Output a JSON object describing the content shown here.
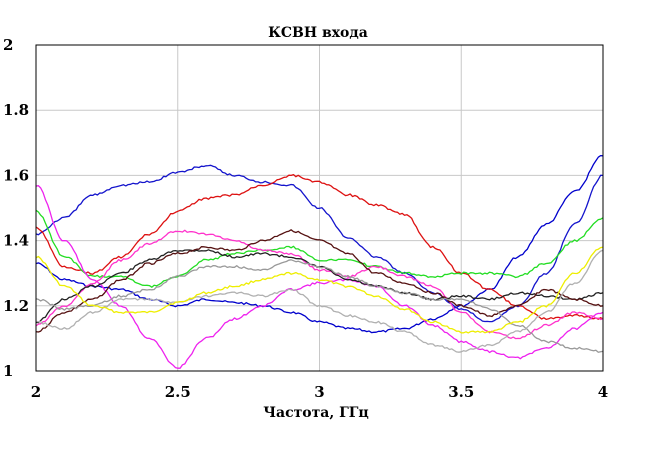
{
  "chart_data": {
    "type": "line",
    "title": "КСВН входа",
    "xlabel": "Частота, ГГц",
    "ylabel": "",
    "xlim": [
      2,
      4
    ],
    "ylim": [
      1,
      2
    ],
    "xticks": [
      {
        "value": 2,
        "label": "2"
      },
      {
        "value": 2.5,
        "label": "2.5"
      },
      {
        "value": 3,
        "label": "3"
      },
      {
        "value": 3.5,
        "label": "3.5"
      },
      {
        "value": 4,
        "label": "4"
      }
    ],
    "yticks": [
      {
        "value": 1,
        "label": "1"
      },
      {
        "value": 1.2,
        "label": "1.2"
      },
      {
        "value": 1.4,
        "label": "1.4"
      },
      {
        "value": 1.6,
        "label": "1.6"
      },
      {
        "value": 1.8,
        "label": "1.8"
      },
      {
        "value": 2,
        "label": "2"
      }
    ],
    "grid": true,
    "series": [
      {
        "color": "#0000cc",
        "x": [
          2,
          2.1,
          2.2,
          2.3,
          2.4,
          2.5,
          2.6,
          2.7,
          2.8,
          2.9,
          3.0,
          3.1,
          3.2,
          3.3,
          3.4,
          3.5,
          3.6,
          3.7,
          3.8,
          3.9,
          4.0
        ],
        "y": [
          1.33,
          1.28,
          1.26,
          1.25,
          1.22,
          1.2,
          1.22,
          1.21,
          1.2,
          1.18,
          1.15,
          1.13,
          1.12,
          1.13,
          1.16,
          1.2,
          1.25,
          1.35,
          1.45,
          1.55,
          1.66
        ]
      },
      {
        "color": "#1414cc",
        "x": [
          2,
          2.1,
          2.2,
          2.3,
          2.4,
          2.5,
          2.6,
          2.7,
          2.8,
          2.9,
          3.0,
          3.1,
          3.2,
          3.3,
          3.4,
          3.5,
          3.6,
          3.7,
          3.8,
          3.9,
          4.0
        ],
        "y": [
          1.42,
          1.47,
          1.54,
          1.57,
          1.58,
          1.61,
          1.63,
          1.6,
          1.58,
          1.57,
          1.5,
          1.41,
          1.35,
          1.3,
          1.24,
          1.19,
          1.15,
          1.2,
          1.3,
          1.45,
          1.6
        ]
      },
      {
        "color": "#dd1111",
        "x": [
          2,
          2.1,
          2.2,
          2.3,
          2.4,
          2.5,
          2.6,
          2.7,
          2.8,
          2.9,
          3.0,
          3.1,
          3.2,
          3.3,
          3.4,
          3.5,
          3.6,
          3.7,
          3.8,
          3.9,
          4.0
        ],
        "y": [
          1.44,
          1.32,
          1.3,
          1.35,
          1.42,
          1.49,
          1.53,
          1.54,
          1.57,
          1.6,
          1.58,
          1.54,
          1.51,
          1.48,
          1.38,
          1.3,
          1.25,
          1.2,
          1.16,
          1.17,
          1.16
        ]
      },
      {
        "color": "#22dd22",
        "x": [
          2,
          2.1,
          2.2,
          2.3,
          2.4,
          2.5,
          2.6,
          2.7,
          2.8,
          2.9,
          3.0,
          3.1,
          3.2,
          3.3,
          3.4,
          3.5,
          3.6,
          3.7,
          3.8,
          3.9,
          4.0
        ],
        "y": [
          1.49,
          1.35,
          1.29,
          1.29,
          1.26,
          1.29,
          1.34,
          1.36,
          1.37,
          1.38,
          1.34,
          1.34,
          1.32,
          1.3,
          1.29,
          1.3,
          1.3,
          1.29,
          1.33,
          1.4,
          1.47
        ]
      },
      {
        "color": "#ee22ee",
        "x": [
          2,
          2.1,
          2.2,
          2.3,
          2.4,
          2.5,
          2.6,
          2.7,
          2.8,
          2.9,
          3.0,
          3.1,
          3.2,
          3.3,
          3.4,
          3.5,
          3.6,
          3.7,
          3.8,
          3.9,
          4.0
        ],
        "y": [
          1.57,
          1.4,
          1.28,
          1.2,
          1.1,
          1.01,
          1.1,
          1.16,
          1.2,
          1.25,
          1.27,
          1.28,
          1.26,
          1.2,
          1.14,
          1.09,
          1.06,
          1.04,
          1.07,
          1.13,
          1.18
        ]
      },
      {
        "color": "#ff33cc",
        "x": [
          2,
          2.1,
          2.2,
          2.3,
          2.4,
          2.5,
          2.6,
          2.7,
          2.8,
          2.9,
          3.0,
          3.1,
          3.2,
          3.3,
          3.4,
          3.5,
          3.6,
          3.7,
          3.8,
          3.9,
          4.0
        ],
        "y": [
          1.14,
          1.2,
          1.27,
          1.34,
          1.39,
          1.43,
          1.42,
          1.4,
          1.37,
          1.36,
          1.31,
          1.29,
          1.32,
          1.29,
          1.26,
          1.18,
          1.12,
          1.1,
          1.14,
          1.18,
          1.16
        ]
      },
      {
        "color": "#222222",
        "x": [
          2,
          2.1,
          2.2,
          2.3,
          2.4,
          2.5,
          2.6,
          2.7,
          2.8,
          2.9,
          3.0,
          3.1,
          3.2,
          3.3,
          3.4,
          3.5,
          3.6,
          3.7,
          3.8,
          3.9,
          4.0
        ],
        "y": [
          1.15,
          1.22,
          1.26,
          1.3,
          1.34,
          1.37,
          1.37,
          1.35,
          1.36,
          1.35,
          1.32,
          1.28,
          1.26,
          1.24,
          1.22,
          1.23,
          1.22,
          1.24,
          1.23,
          1.22,
          1.24
        ]
      },
      {
        "color": "#551111",
        "x": [
          2,
          2.1,
          2.2,
          2.3,
          2.4,
          2.5,
          2.6,
          2.7,
          2.8,
          2.9,
          3.0,
          3.1,
          3.2,
          3.3,
          3.4,
          3.5,
          3.6,
          3.7,
          3.8,
          3.9,
          4.0
        ],
        "y": [
          1.12,
          1.18,
          1.22,
          1.28,
          1.33,
          1.36,
          1.38,
          1.37,
          1.4,
          1.43,
          1.4,
          1.36,
          1.3,
          1.27,
          1.24,
          1.2,
          1.17,
          1.2,
          1.25,
          1.22,
          1.2
        ]
      },
      {
        "color": "#999999",
        "x": [
          2,
          2.1,
          2.2,
          2.3,
          2.4,
          2.5,
          2.6,
          2.7,
          2.8,
          2.9,
          3.0,
          3.1,
          3.2,
          3.3,
          3.4,
          3.5,
          3.6,
          3.7,
          3.8,
          3.9,
          4.0
        ],
        "y": [
          1.22,
          1.19,
          1.2,
          1.23,
          1.25,
          1.29,
          1.32,
          1.32,
          1.31,
          1.34,
          1.32,
          1.29,
          1.26,
          1.24,
          1.22,
          1.22,
          1.19,
          1.14,
          1.09,
          1.07,
          1.06
        ]
      },
      {
        "color": "#b0b0b0",
        "x": [
          2,
          2.1,
          2.2,
          2.3,
          2.4,
          2.5,
          2.6,
          2.7,
          2.8,
          2.9,
          3.0,
          3.1,
          3.2,
          3.3,
          3.4,
          3.5,
          3.6,
          3.7,
          3.8,
          3.9,
          4.0
        ],
        "y": [
          1.15,
          1.13,
          1.18,
          1.22,
          1.22,
          1.21,
          1.23,
          1.24,
          1.23,
          1.25,
          1.2,
          1.17,
          1.15,
          1.12,
          1.08,
          1.06,
          1.08,
          1.12,
          1.18,
          1.27,
          1.37
        ]
      },
      {
        "color": "#eeee00",
        "x": [
          2,
          2.1,
          2.2,
          2.3,
          2.4,
          2.5,
          2.6,
          2.7,
          2.8,
          2.9,
          3.0,
          3.1,
          3.2,
          3.3,
          3.4,
          3.5,
          3.6,
          3.7,
          3.8,
          3.9,
          4.0
        ],
        "y": [
          1.35,
          1.26,
          1.2,
          1.18,
          1.18,
          1.21,
          1.24,
          1.26,
          1.28,
          1.3,
          1.28,
          1.26,
          1.23,
          1.19,
          1.15,
          1.12,
          1.12,
          1.15,
          1.2,
          1.3,
          1.38
        ]
      }
    ]
  }
}
